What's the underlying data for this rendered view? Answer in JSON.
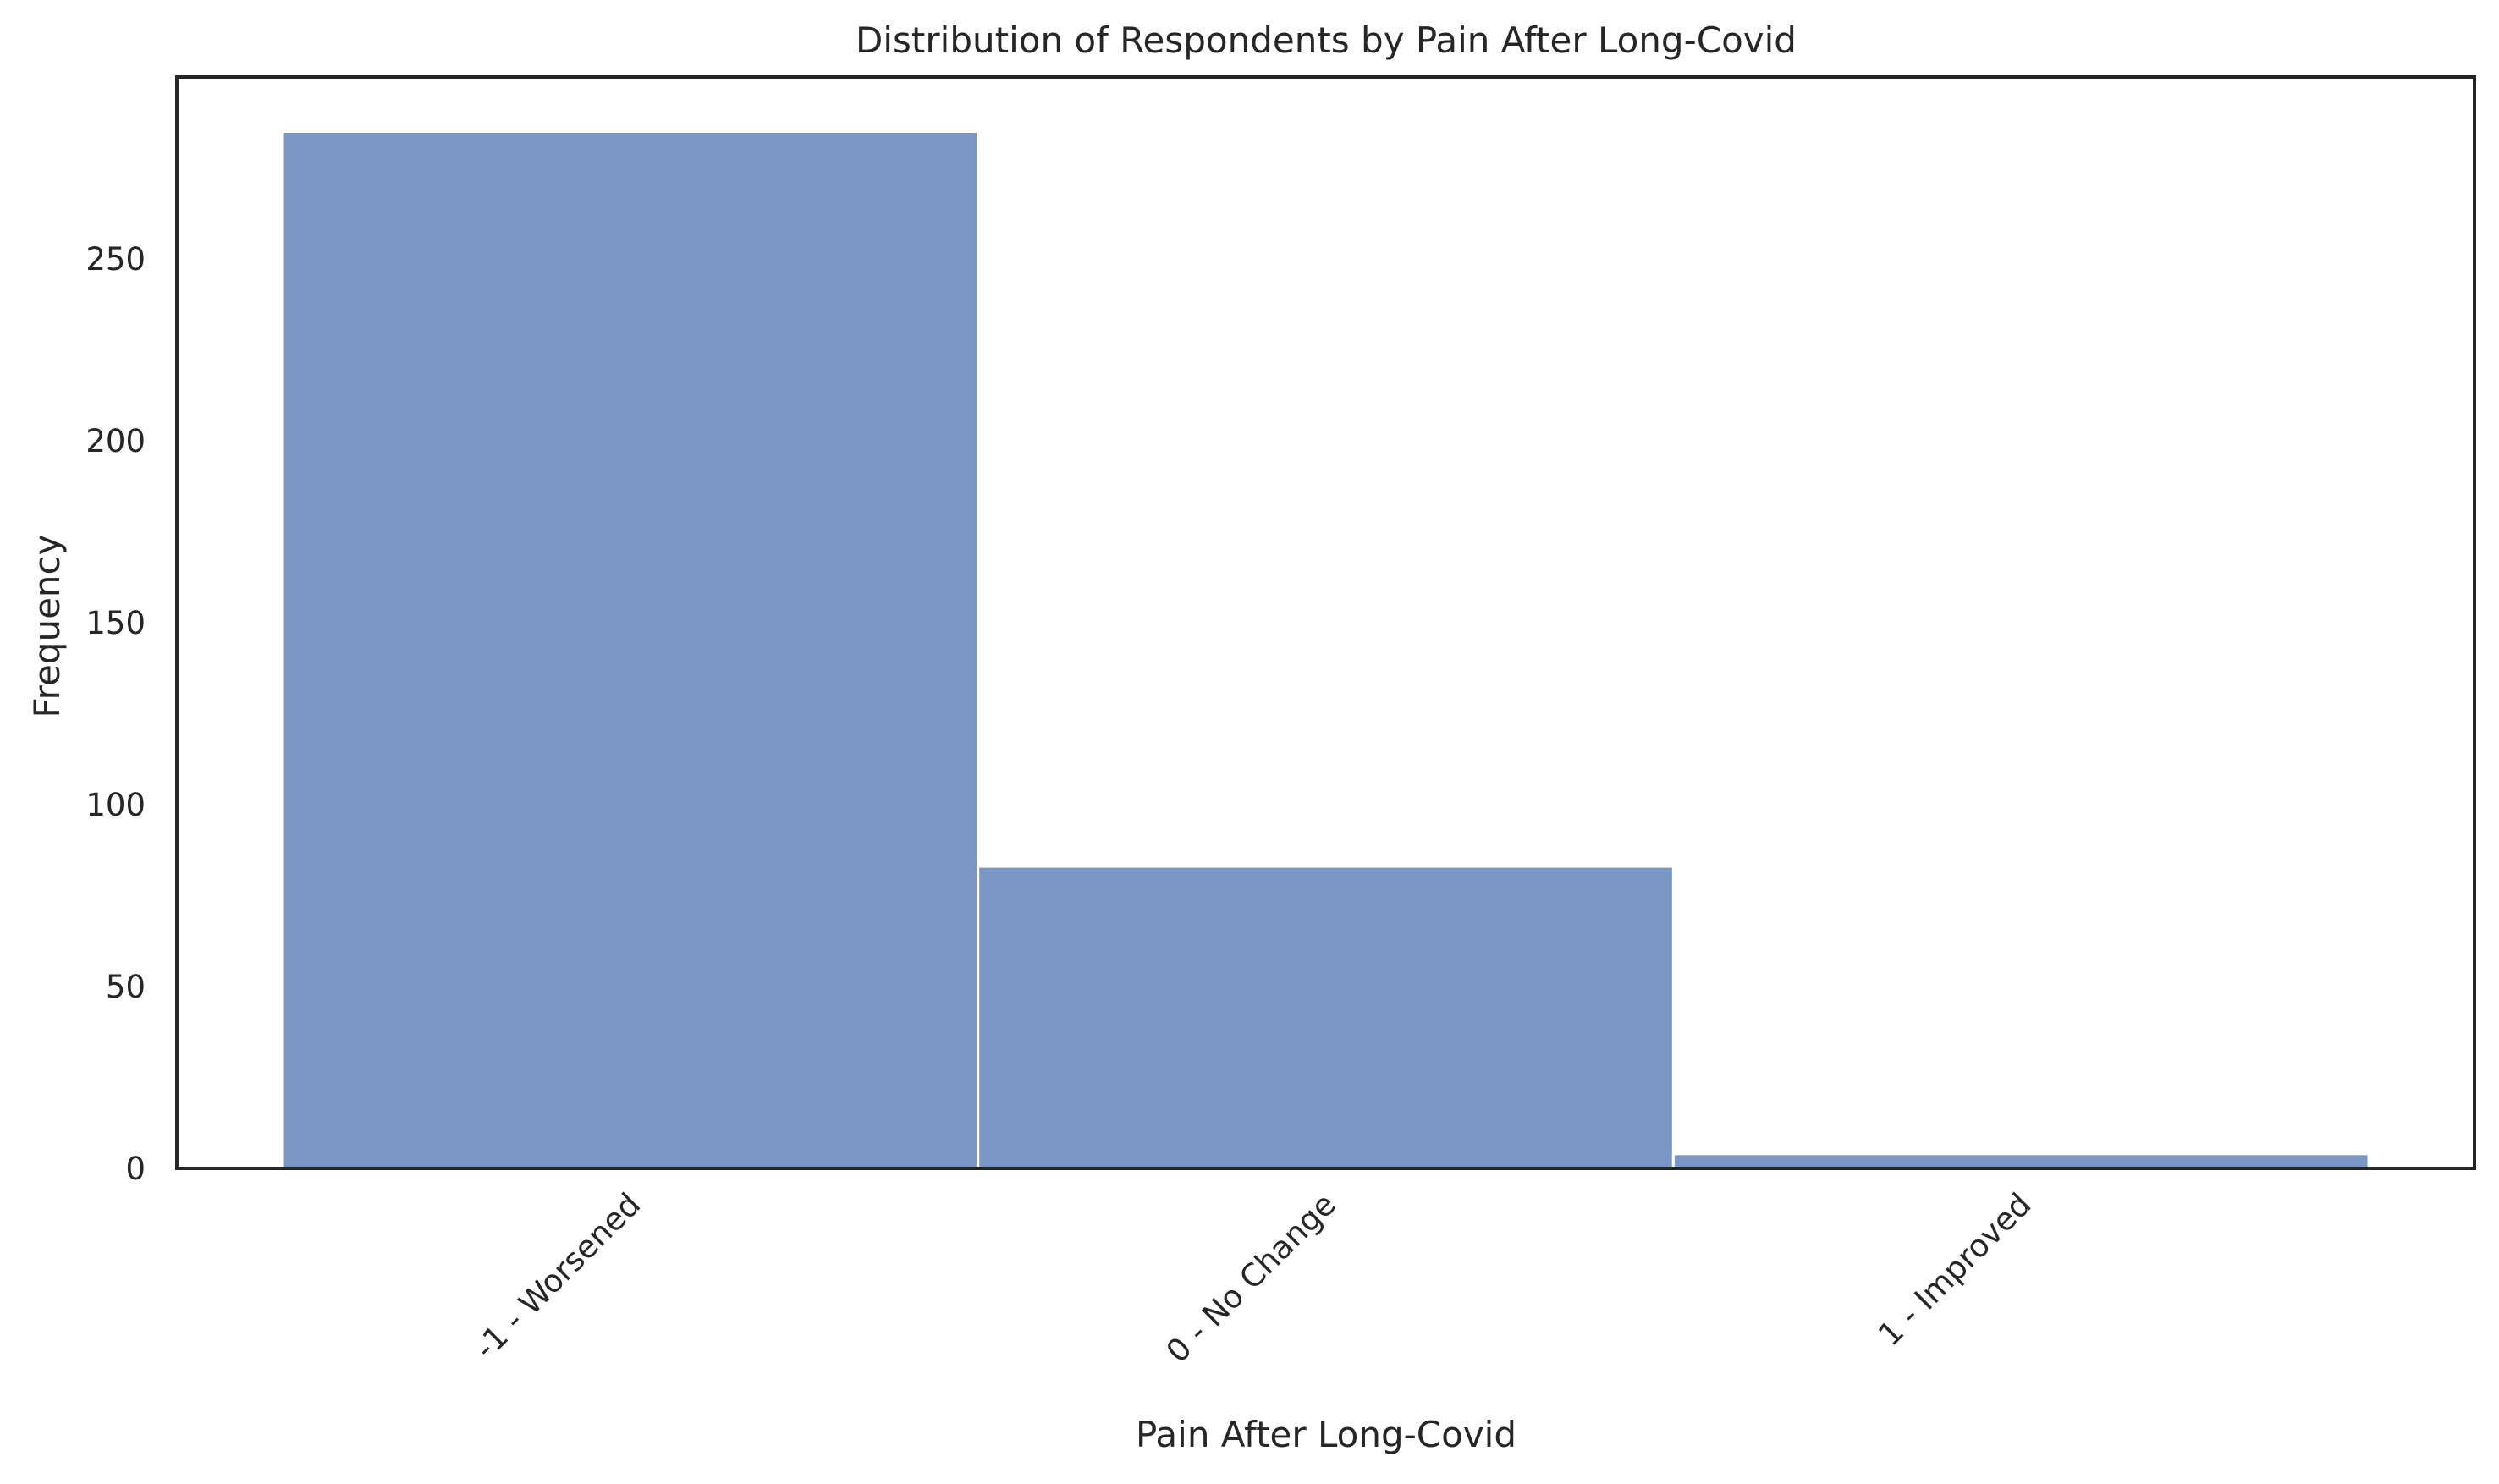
{
  "chart_data": {
    "type": "bar",
    "title": "Distribution of Respondents by Pain After Long-Covid",
    "xlabel": "Pain After Long-Covid",
    "ylabel": "Frequency",
    "categories": [
      "-1 - Worsened",
      "0 - No Change",
      "1 - Improved"
    ],
    "values": [
      285,
      83,
      4
    ],
    "ylim": [
      0,
      300
    ],
    "yticks": [
      "0",
      "50",
      "100",
      "150",
      "200",
      "250"
    ],
    "grid": false,
    "bar_color": "#7a96c4"
  }
}
